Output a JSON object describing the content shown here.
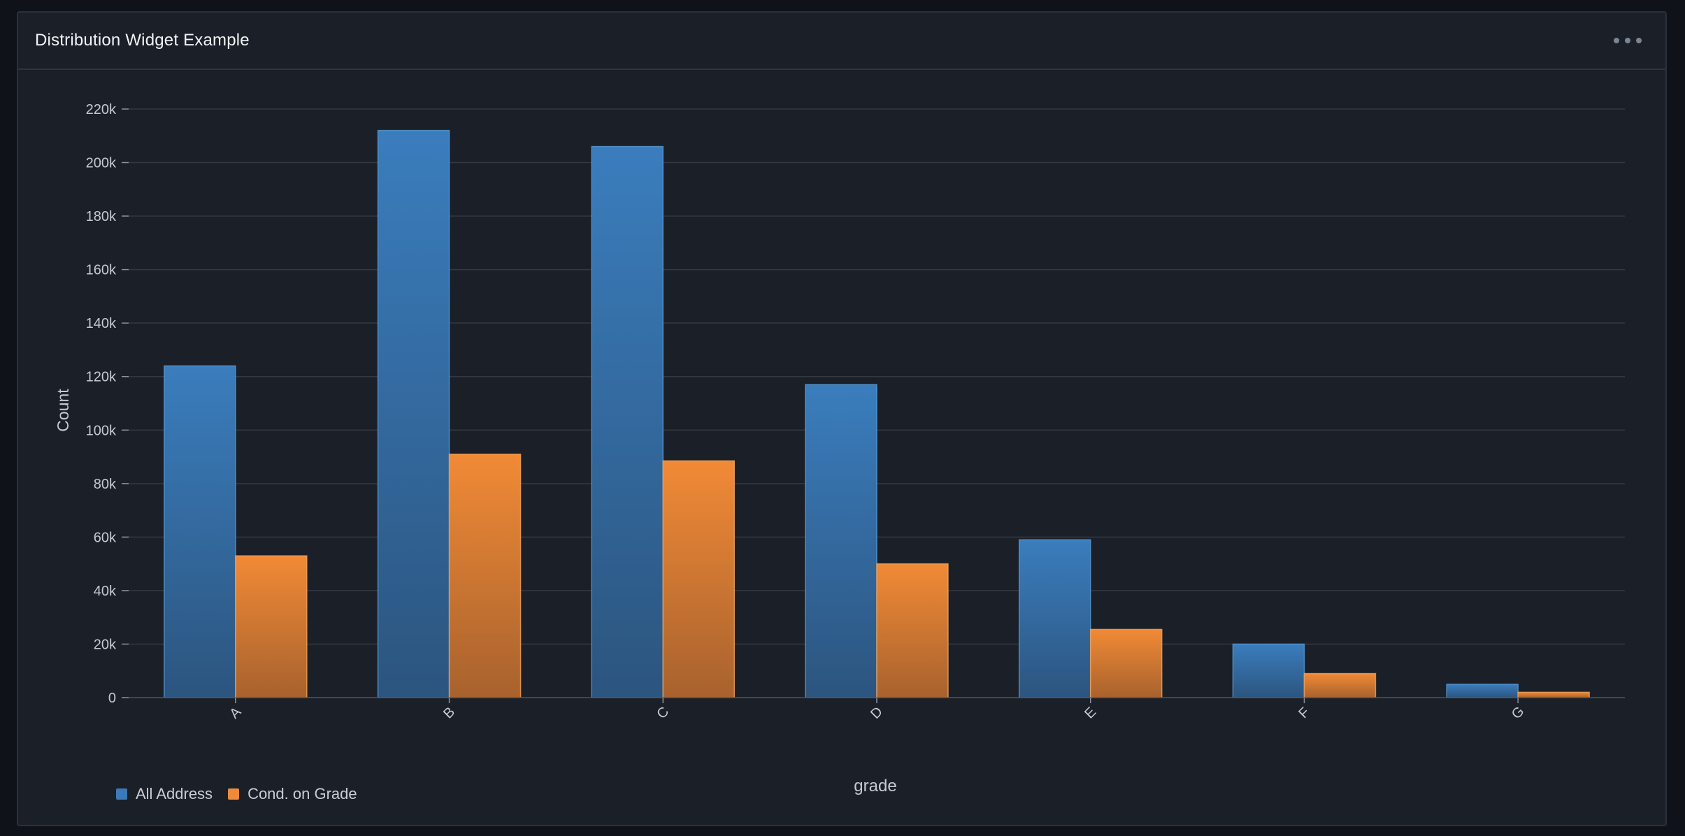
{
  "widget": {
    "title": "Distribution Widget Example",
    "menu_icon": "more-horizontal-icon"
  },
  "chart_data": {
    "type": "bar",
    "title": "",
    "xlabel": "grade",
    "ylabel": "Count",
    "categories": [
      "A",
      "B",
      "C",
      "D",
      "E",
      "F",
      "G"
    ],
    "series": [
      {
        "name": "All Address",
        "color": "#3b7ab8",
        "values": [
          124000,
          212000,
          206000,
          117000,
          59000,
          20000,
          5000
        ]
      },
      {
        "name": "Cond. on Grade",
        "color": "#ee8a3c",
        "values": [
          53000,
          91000,
          88500,
          50000,
          25500,
          9000,
          2000
        ]
      }
    ],
    "ylim": [
      0,
      220000
    ],
    "yticks": [
      "0",
      "20k",
      "40k",
      "60k",
      "80k",
      "100k",
      "120k",
      "140k",
      "160k",
      "180k",
      "200k",
      "220k"
    ],
    "grid": true,
    "legend_position": "bottom-left"
  }
}
